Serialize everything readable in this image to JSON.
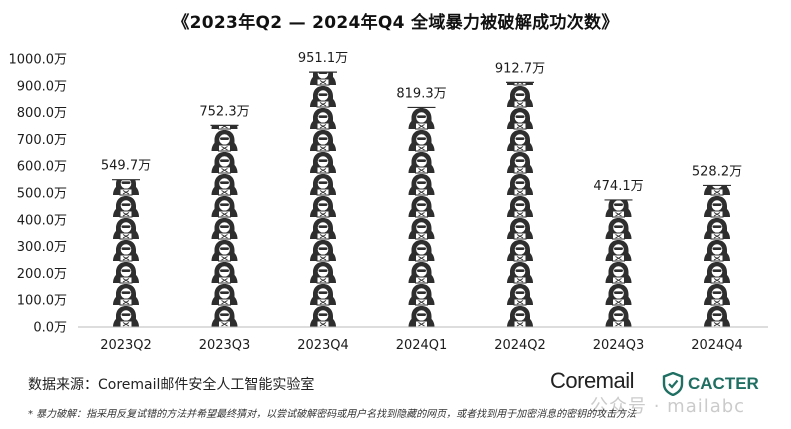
{
  "colors": {
    "bar_icon": "#2e2e2e",
    "axis_text": "#1c1c1c",
    "baseline": "#bbbbbb",
    "cacter_green": "#1f6f63"
  },
  "chart_data": {
    "type": "bar",
    "title": "《2023年Q2 — 2024年Q4 全域暴力被破解成功次数》",
    "categories": [
      "2023Q2",
      "2023Q3",
      "2023Q4",
      "2024Q1",
      "2024Q2",
      "2024Q3",
      "2024Q4"
    ],
    "values": [
      549.7,
      752.3,
      951.1,
      819.3,
      912.7,
      474.1,
      528.2
    ],
    "value_labels": [
      "549.7万",
      "752.3万",
      "951.1万",
      "819.3万",
      "912.7万",
      "474.1万",
      "528.2万"
    ],
    "ylim": [
      0,
      1000
    ],
    "yticks": [
      "0.0万",
      "100.0万",
      "200.0万",
      "300.0万",
      "400.0万",
      "500.0万",
      "600.0万",
      "700.0万",
      "800.0万",
      "900.0万",
      "1000.0万"
    ],
    "grid": false,
    "bar_style": "stacked hacker icons",
    "bar_icon": "hacker-icon"
  },
  "source": "数据来源：Coremail邮件安全人工智能实验室",
  "brand": {
    "coremail": "Coremail",
    "cacter": "CACTER"
  },
  "footnote": "* 暴力破解：指采用反复试错的方法并希望最终猜对，以尝试破解密码或用户名找到隐藏的网页，或者找到用于加密消息的密钥的攻击方法",
  "watermark": "公众号 · mailabc"
}
